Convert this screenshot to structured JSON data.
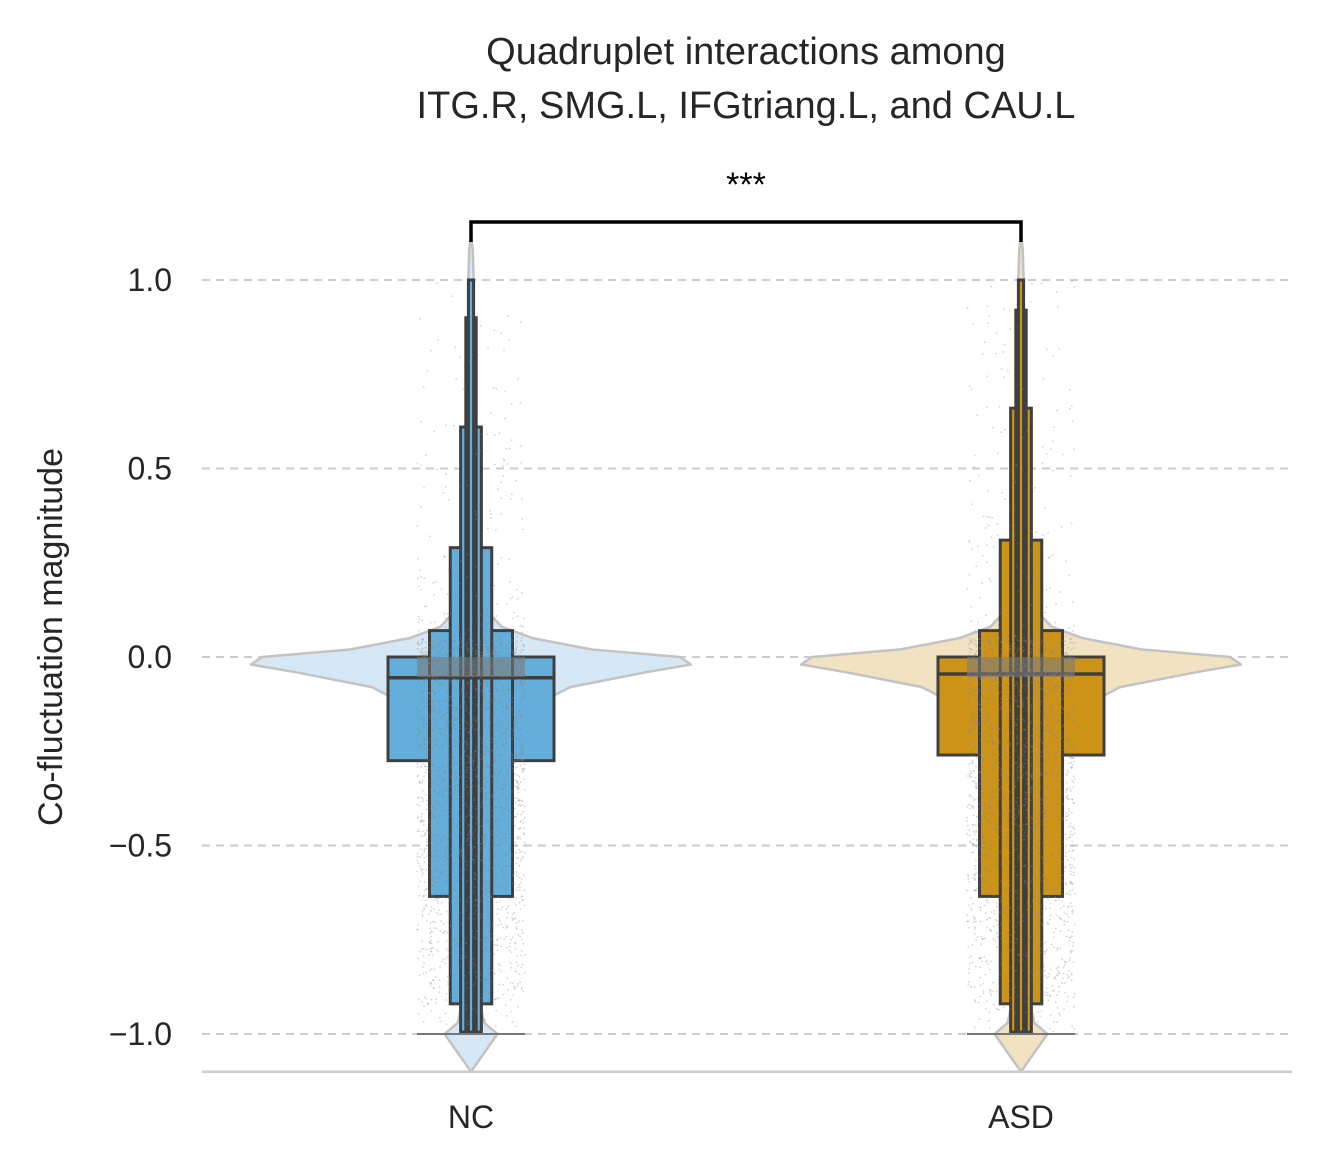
{
  "chart_data": {
    "type": "boxen_violin",
    "title_lines": [
      "Quadruplet interactions among",
      "ITG.R, SMG.L, IFGtriang.L, and CAU.L"
    ],
    "ylabel": "Co-fluctuation magnitude",
    "xlabel": "",
    "categories": [
      "NC",
      "ASD"
    ],
    "ylim": [
      -1.1,
      1.1
    ],
    "yticks": [
      -1.0,
      -0.5,
      0.0,
      0.5,
      1.0
    ],
    "ytick_labels": [
      "−1.0",
      "−0.5",
      "0.0",
      "0.5",
      "1.0"
    ],
    "grid": "horizontal dashed",
    "significance": {
      "label": "***",
      "between": [
        "NC",
        "ASD"
      ]
    },
    "series": [
      {
        "category": "NC",
        "box_color": "#63AEDB",
        "violin_color": "#d6e8f5",
        "median": -0.055,
        "boxes": [
          {
            "low": -0.275,
            "high": 0.0
          },
          {
            "low": -0.635,
            "high": 0.07
          },
          {
            "low": -0.92,
            "high": 0.29
          },
          {
            "low": -0.995,
            "high": 0.61
          },
          {
            "low": -0.995,
            "high": 0.9
          },
          {
            "low": -0.995,
            "high": 1.0
          }
        ],
        "violin_profile": [
          [
            -1.1,
            0.0
          ],
          [
            -1.05,
            0.06
          ],
          [
            -1.0,
            0.12
          ],
          [
            -0.97,
            0.06
          ],
          [
            -0.9,
            0.035
          ],
          [
            -0.7,
            0.04
          ],
          [
            -0.5,
            0.05
          ],
          [
            -0.35,
            0.07
          ],
          [
            -0.25,
            0.12
          ],
          [
            -0.15,
            0.22
          ],
          [
            -0.08,
            0.45
          ],
          [
            -0.04,
            0.8
          ],
          [
            -0.02,
            1.0
          ],
          [
            0.0,
            0.95
          ],
          [
            0.02,
            0.55
          ],
          [
            0.05,
            0.28
          ],
          [
            0.08,
            0.14
          ],
          [
            0.12,
            0.075
          ],
          [
            0.2,
            0.045
          ],
          [
            0.35,
            0.028
          ],
          [
            0.6,
            0.016
          ],
          [
            0.85,
            0.01
          ],
          [
            1.0,
            0.012
          ],
          [
            1.08,
            0.008
          ],
          [
            1.12,
            0.0
          ]
        ]
      },
      {
        "category": "ASD",
        "box_color": "#CE9418",
        "violin_color": "#f1e2c2",
        "median": -0.045,
        "boxes": [
          {
            "low": -0.26,
            "high": 0.0
          },
          {
            "low": -0.635,
            "high": 0.07
          },
          {
            "low": -0.92,
            "high": 0.31
          },
          {
            "low": -0.995,
            "high": 0.66
          },
          {
            "low": -0.995,
            "high": 0.92
          },
          {
            "low": -0.995,
            "high": 1.0
          }
        ],
        "violin_profile": [
          [
            -1.1,
            0.0
          ],
          [
            -1.05,
            0.06
          ],
          [
            -1.0,
            0.12
          ],
          [
            -0.97,
            0.06
          ],
          [
            -0.9,
            0.035
          ],
          [
            -0.7,
            0.04
          ],
          [
            -0.5,
            0.05
          ],
          [
            -0.35,
            0.07
          ],
          [
            -0.25,
            0.12
          ],
          [
            -0.15,
            0.22
          ],
          [
            -0.08,
            0.45
          ],
          [
            -0.04,
            0.8
          ],
          [
            -0.02,
            1.0
          ],
          [
            0.0,
            0.95
          ],
          [
            0.02,
            0.55
          ],
          [
            0.05,
            0.28
          ],
          [
            0.08,
            0.14
          ],
          [
            0.12,
            0.075
          ],
          [
            0.2,
            0.045
          ],
          [
            0.35,
            0.028
          ],
          [
            0.6,
            0.016
          ],
          [
            0.85,
            0.01
          ],
          [
            1.0,
            0.012
          ],
          [
            1.08,
            0.008
          ],
          [
            1.12,
            0.0
          ]
        ]
      }
    ]
  }
}
